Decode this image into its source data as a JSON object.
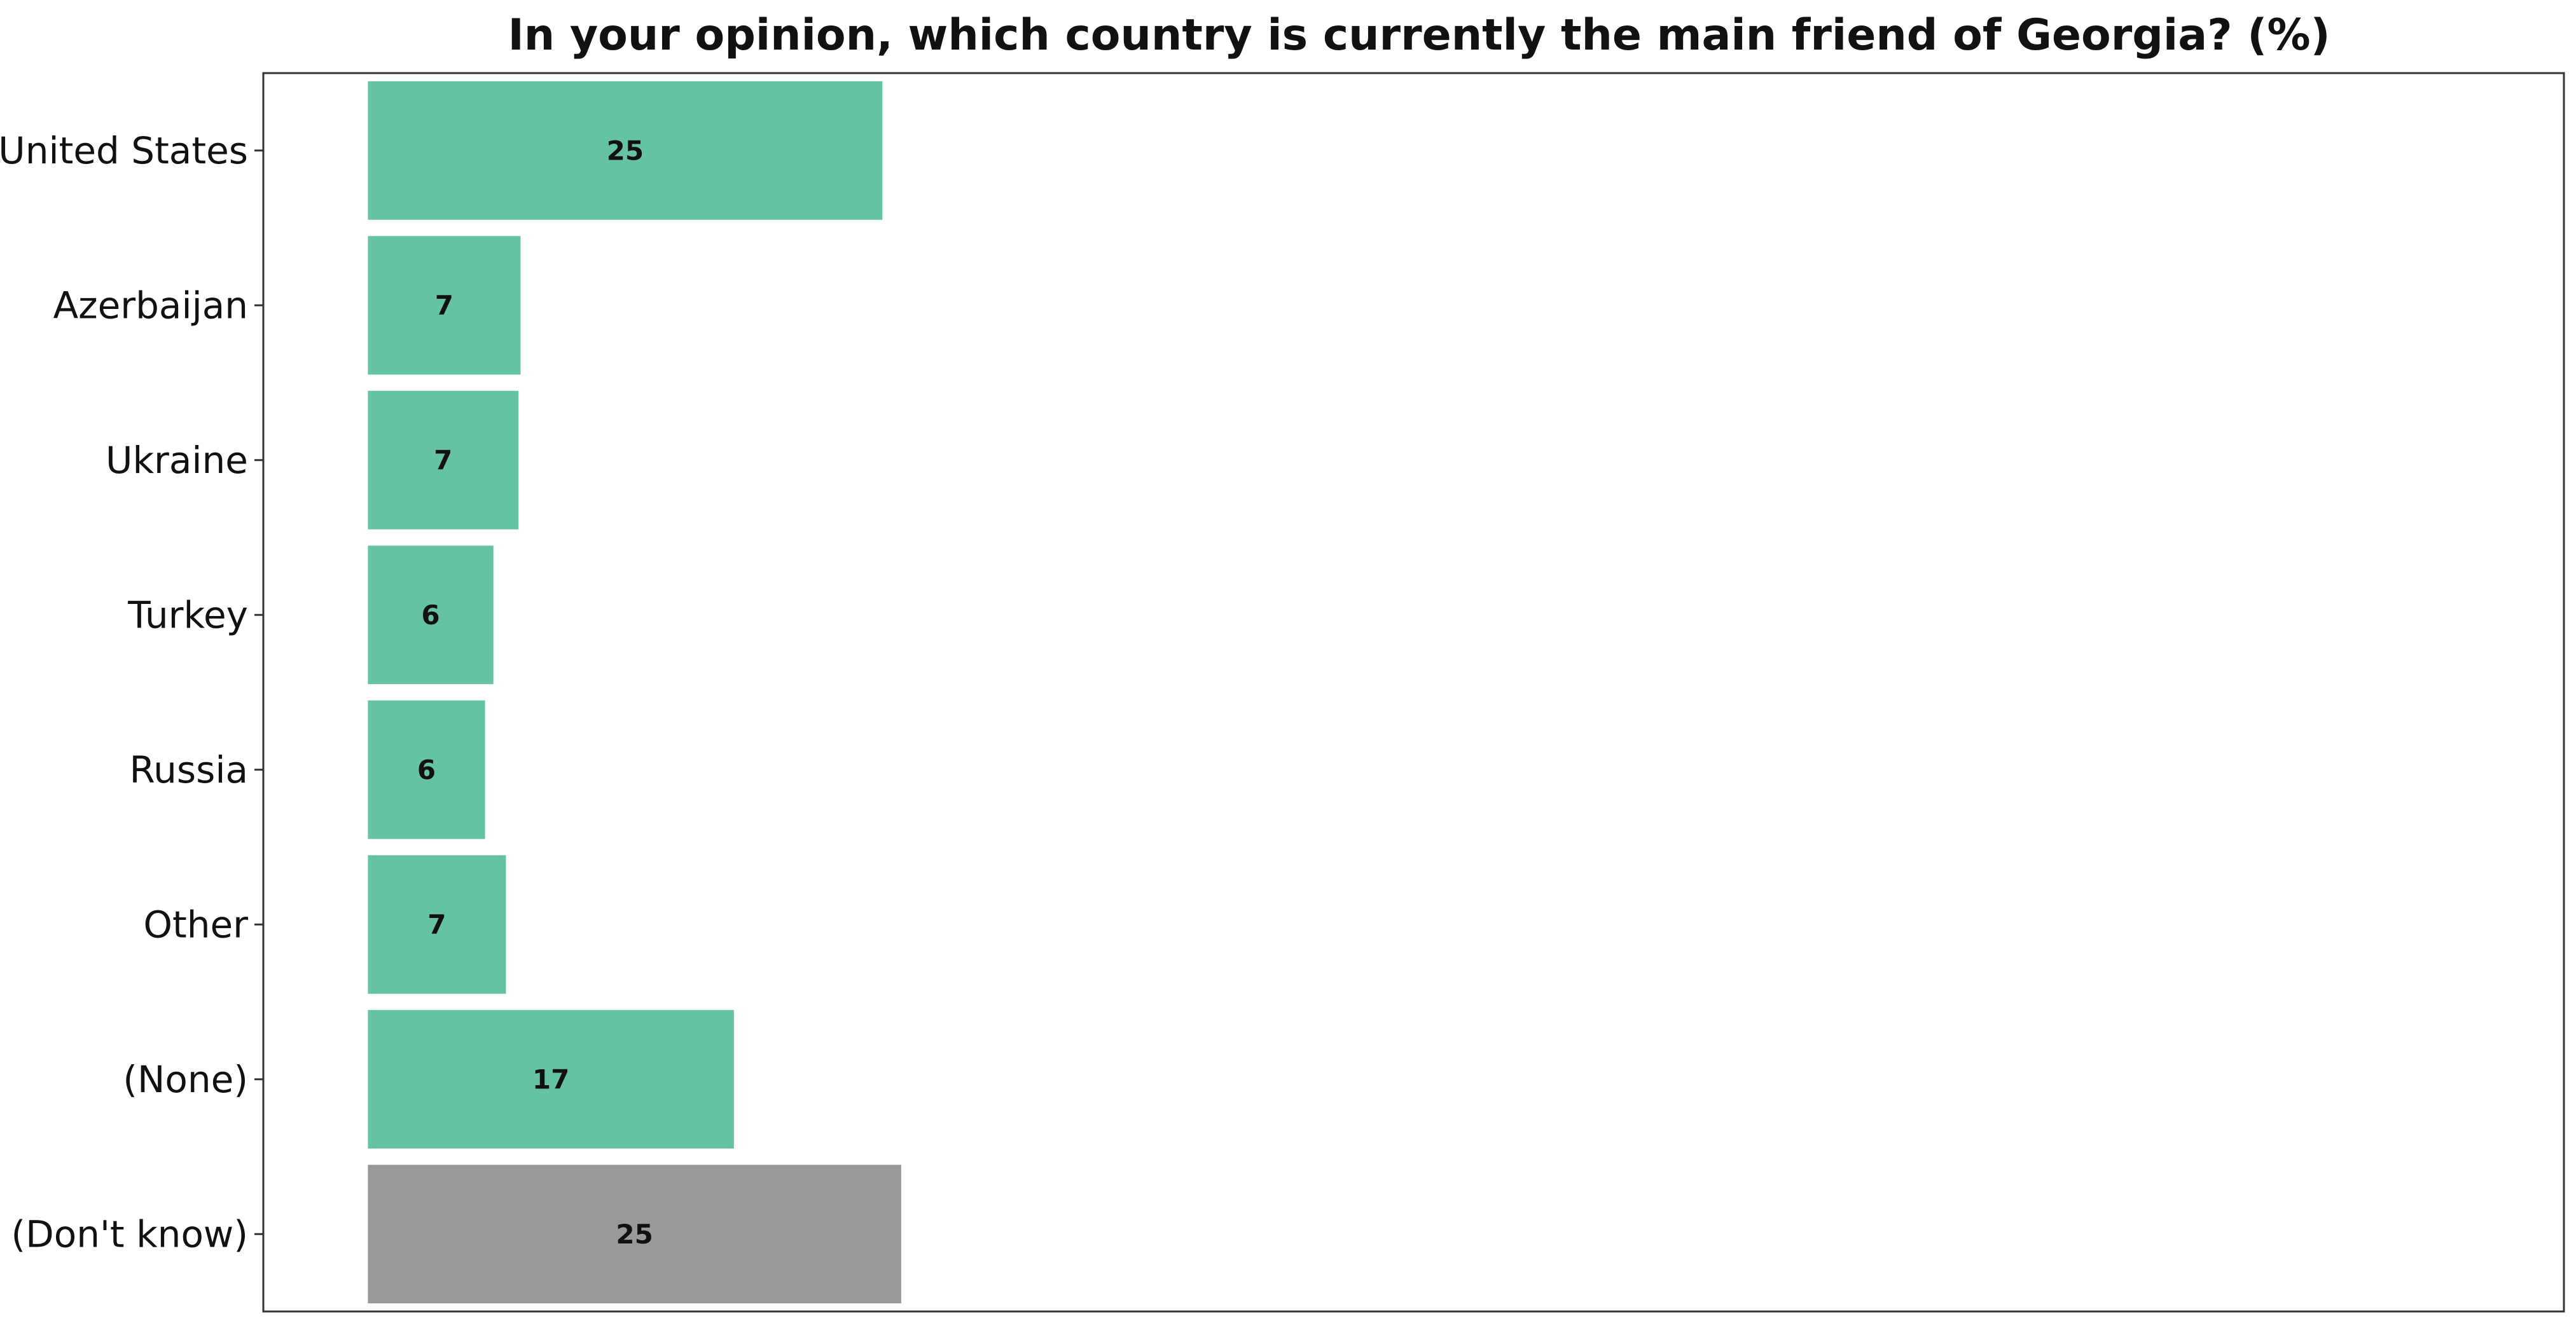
{
  "chart_data": {
    "type": "bar",
    "orientation": "horizontal",
    "title": "In your opinion, which country is currently the main friend of Georgia? (%)",
    "xlabel": "",
    "ylabel": "",
    "categories": [
      "United States",
      "Azerbaijan",
      "Ukraine",
      "Turkey",
      "Russia",
      "Other",
      "(None)",
      "(Don't know)"
    ],
    "values": [
      25,
      7,
      7,
      6,
      6,
      7,
      17,
      25
    ],
    "exact_values": [
      24.6,
      7.3,
      7.2,
      6.0,
      5.6,
      6.6,
      17.5,
      25.5
    ],
    "data_labels": [
      "25",
      "7",
      "7",
      "6",
      "6",
      "7",
      "17",
      "25"
    ],
    "bar_colors": [
      "#66c2a5",
      "#66c2a5",
      "#66c2a5",
      "#66c2a5",
      "#66c2a5",
      "#66c2a5",
      "#66c2a5",
      "#999999"
    ],
    "xlim": [
      -5,
      105
    ],
    "grid": false,
    "legend": "none"
  }
}
